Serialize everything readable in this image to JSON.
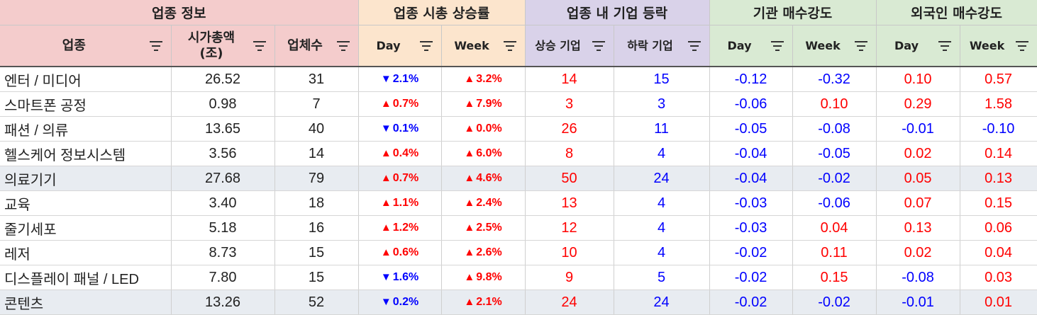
{
  "colors": {
    "up": "#ff0000",
    "down": "#0000ff",
    "group1_bg": "#f4cccc",
    "group2_bg": "#fce5cd",
    "group3_bg": "#d9d2e9",
    "group4_bg": "#d9ead3",
    "alt_row_bg": "#e8ecf1"
  },
  "groups": [
    "업종 정보",
    "업종 시총 상승률",
    "업종 내 기업 등락",
    "기관 매수강도",
    "외국인 매수강도"
  ],
  "columns": {
    "sector": "업종",
    "marketcap_line1": "시가총액",
    "marketcap_line2": "(조)",
    "count": "업체수",
    "mc_day": "Day",
    "mc_week": "Week",
    "up_cnt": "상승 기업",
    "down_cnt": "하락 기업",
    "inst_day": "Day",
    "inst_week": "Week",
    "for_day": "Day",
    "for_week": "Week"
  },
  "icons": {
    "filter": "filter-icon",
    "up": "▲",
    "down": "▼"
  },
  "rows": [
    {
      "name": "엔터 / 미디어",
      "mcap": "26.52",
      "count": "31",
      "day": {
        "dir": "down",
        "text": "2.1%"
      },
      "week": {
        "dir": "up",
        "text": "3.2%"
      },
      "up": "14",
      "down": "15",
      "inst_day": "-0.12",
      "inst_week": "-0.32",
      "for_day": "0.10",
      "for_week": "0.57"
    },
    {
      "name": "스마트폰 공정",
      "mcap": "0.98",
      "count": "7",
      "day": {
        "dir": "up",
        "text": "0.7%"
      },
      "week": {
        "dir": "up",
        "text": "7.9%"
      },
      "up": "3",
      "down": "3",
      "inst_day": "-0.06",
      "inst_week": "0.10",
      "for_day": "0.29",
      "for_week": "1.58"
    },
    {
      "name": "패션 / 의류",
      "mcap": "13.65",
      "count": "40",
      "day": {
        "dir": "down",
        "text": "0.1%"
      },
      "week": {
        "dir": "up",
        "text": "0.0%"
      },
      "up": "26",
      "down": "11",
      "inst_day": "-0.05",
      "inst_week": "-0.08",
      "for_day": "-0.01",
      "for_week": "-0.10"
    },
    {
      "name": "헬스케어 정보시스템",
      "mcap": "3.56",
      "count": "14",
      "day": {
        "dir": "up",
        "text": "0.4%"
      },
      "week": {
        "dir": "up",
        "text": "6.0%"
      },
      "up": "8",
      "down": "4",
      "inst_day": "-0.04",
      "inst_week": "-0.05",
      "for_day": "0.02",
      "for_week": "0.14"
    },
    {
      "name": "의료기기",
      "mcap": "27.68",
      "count": "79",
      "day": {
        "dir": "up",
        "text": "0.7%"
      },
      "week": {
        "dir": "up",
        "text": "4.6%"
      },
      "up": "50",
      "down": "24",
      "inst_day": "-0.04",
      "inst_week": "-0.02",
      "for_day": "0.05",
      "for_week": "0.13"
    },
    {
      "name": "교육",
      "mcap": "3.40",
      "count": "18",
      "day": {
        "dir": "up",
        "text": "1.1%"
      },
      "week": {
        "dir": "up",
        "text": "2.4%"
      },
      "up": "13",
      "down": "4",
      "inst_day": "-0.03",
      "inst_week": "-0.06",
      "for_day": "0.07",
      "for_week": "0.15"
    },
    {
      "name": "줄기세포",
      "mcap": "5.18",
      "count": "16",
      "day": {
        "dir": "up",
        "text": "1.2%"
      },
      "week": {
        "dir": "up",
        "text": "2.5%"
      },
      "up": "12",
      "down": "4",
      "inst_day": "-0.03",
      "inst_week": "0.04",
      "for_day": "0.13",
      "for_week": "0.06"
    },
    {
      "name": "레저",
      "mcap": "8.73",
      "count": "15",
      "day": {
        "dir": "up",
        "text": "0.6%"
      },
      "week": {
        "dir": "up",
        "text": "2.6%"
      },
      "up": "10",
      "down": "4",
      "inst_day": "-0.02",
      "inst_week": "0.11",
      "for_day": "0.02",
      "for_week": "0.04"
    },
    {
      "name": "디스플레이 패널 / LED",
      "mcap": "7.80",
      "count": "15",
      "day": {
        "dir": "down",
        "text": "1.6%"
      },
      "week": {
        "dir": "up",
        "text": "9.8%"
      },
      "up": "9",
      "down": "5",
      "inst_day": "-0.02",
      "inst_week": "0.15",
      "for_day": "-0.08",
      "for_week": "0.03"
    },
    {
      "name": "콘텐츠",
      "mcap": "13.26",
      "count": "52",
      "day": {
        "dir": "down",
        "text": "0.2%"
      },
      "week": {
        "dir": "up",
        "text": "2.1%"
      },
      "up": "24",
      "down": "24",
      "inst_day": "-0.02",
      "inst_week": "-0.02",
      "for_day": "-0.01",
      "for_week": "0.01"
    }
  ]
}
